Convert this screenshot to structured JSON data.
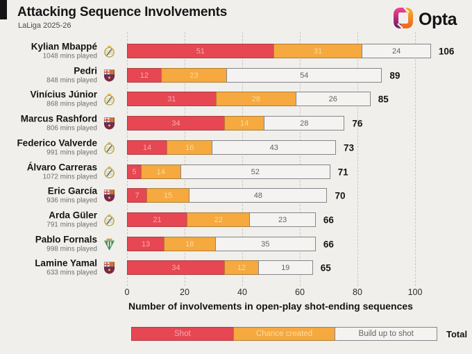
{
  "header": {
    "title": "Attacking Sequence Involvements",
    "subtitle": "LaLiga 2025-26",
    "brand": "Opta"
  },
  "colors": {
    "background": "#f0efec",
    "shot_fill": "#e64752",
    "shot_border": "#a93b44",
    "chance_fill": "#f5a93e",
    "chance_border": "#b07c33",
    "build_fill": "#f4f3f1",
    "build_border": "#85858a",
    "opta_magenta": "#a5216d",
    "opta_orange": "#f59b28"
  },
  "chart_data": {
    "type": "bar",
    "orientation": "horizontal",
    "stacked": true,
    "title": "Attacking Sequence Involvements",
    "subtitle": "LaLiga 2025-26",
    "xlabel": "Number of involvements in open-play shot-ending sequences",
    "x_ticks": [
      0,
      20,
      40,
      60,
      80,
      100
    ],
    "xlim": [
      0,
      110
    ],
    "grid": "dashed-vertical",
    "legend": {
      "position": "bottom",
      "entries": [
        "Shot",
        "Chance created",
        "Build up to shot"
      ],
      "total_label": "Total"
    },
    "series_keys": [
      "shot",
      "chance_created",
      "build_up"
    ],
    "players": [
      {
        "name": "Kylian Mbappé",
        "mins": "1048 mins played",
        "team": "real-madrid",
        "shot": 51,
        "chance_created": 31,
        "build_up": 24,
        "total": 106
      },
      {
        "name": "Pedri",
        "mins": "848 mins played",
        "team": "barcelona",
        "shot": 12,
        "chance_created": 23,
        "build_up": 54,
        "total": 89
      },
      {
        "name": "Vinícius Júnior",
        "mins": "868 mins played",
        "team": "real-madrid",
        "shot": 31,
        "chance_created": 28,
        "build_up": 26,
        "total": 85
      },
      {
        "name": "Marcus Rashford",
        "mins": "806 mins played",
        "team": "barcelona",
        "shot": 34,
        "chance_created": 14,
        "build_up": 28,
        "total": 76
      },
      {
        "name": "Federico Valverde",
        "mins": "991 mins played",
        "team": "real-madrid",
        "shot": 14,
        "chance_created": 16,
        "build_up": 43,
        "total": 73
      },
      {
        "name": "Álvaro Carreras",
        "mins": "1072 mins played",
        "team": "real-madrid",
        "shot": 5,
        "chance_created": 14,
        "build_up": 52,
        "total": 71
      },
      {
        "name": "Eric García",
        "mins": "936 mins played",
        "team": "barcelona",
        "shot": 7,
        "chance_created": 15,
        "build_up": 48,
        "total": 70
      },
      {
        "name": "Arda Güler",
        "mins": "791 mins played",
        "team": "real-madrid",
        "shot": 21,
        "chance_created": 22,
        "build_up": 23,
        "total": 66
      },
      {
        "name": "Pablo Fornals",
        "mins": "998 mins played",
        "team": "real-betis",
        "shot": 13,
        "chance_created": 18,
        "build_up": 35,
        "total": 66
      },
      {
        "name": "Lamine Yamal",
        "mins": "633 mins played",
        "team": "barcelona",
        "shot": 34,
        "chance_created": 12,
        "build_up": 19,
        "total": 65
      }
    ]
  }
}
